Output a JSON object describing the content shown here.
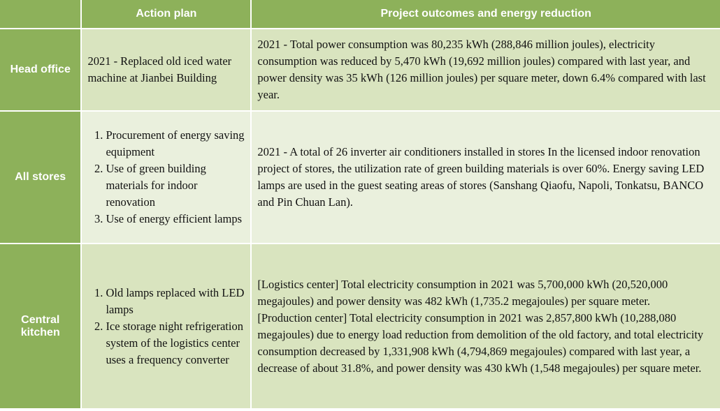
{
  "header": {
    "columns": [
      "Action plan",
      "Project outcomes and energy reduction"
    ]
  },
  "rows": [
    {
      "label": "Head office",
      "action": [
        "2021 - Replaced old iced water machine at Jianbei Building"
      ],
      "outcome": [
        "2021 - Total power consumption was 80,235 kWh (288,846 million joules), electricity consumption was reduced by 5,470 kWh (19,692 million joules) compared with last year, and power density was 35 kWh (126 million joules) per square meter, down 6.4% compared with last year."
      ]
    },
    {
      "label": "All stores",
      "action_list": [
        "Procurement of energy saving equipment",
        "Use of green building materials for indoor renovation",
        "Use of energy efficient lamps"
      ],
      "outcome": [
        "2021 - A total of 26 inverter air conditioners installed in stores In the licensed indoor renovation project of stores, the utilization rate of green building materials is over 60%. Energy saving LED lamps are used in the guest seating areas of stores (Sanshang Qiaofu, Napoli, Tonkatsu, BANCO and Pin Chuan Lan)."
      ]
    },
    {
      "label": "Central kitchen",
      "action_list": [
        "Old lamps replaced with LED lamps",
        "Ice storage night refrigeration system of the logistics center uses a frequency converter"
      ],
      "outcome": [
        "[Logistics center] Total electricity consumption in 2021 was 5,700,000 kWh (20,520,000 megajoules) and power density was 482 kWh (1,735.2 megajoules) per square meter.",
        "[Production center] Total electricity consumption in 2021 was 2,857,800 kWh (10,288,080 megajoules) due to energy load reduction from demolition of the old factory, and total electricity consumption decreased by 1,331,908 kWh (4,794,869 megajoules) compared with last year, a decrease of about 31.8%, and power density was 430 kWh (1,548 megajoules) per square meter."
      ]
    }
  ]
}
